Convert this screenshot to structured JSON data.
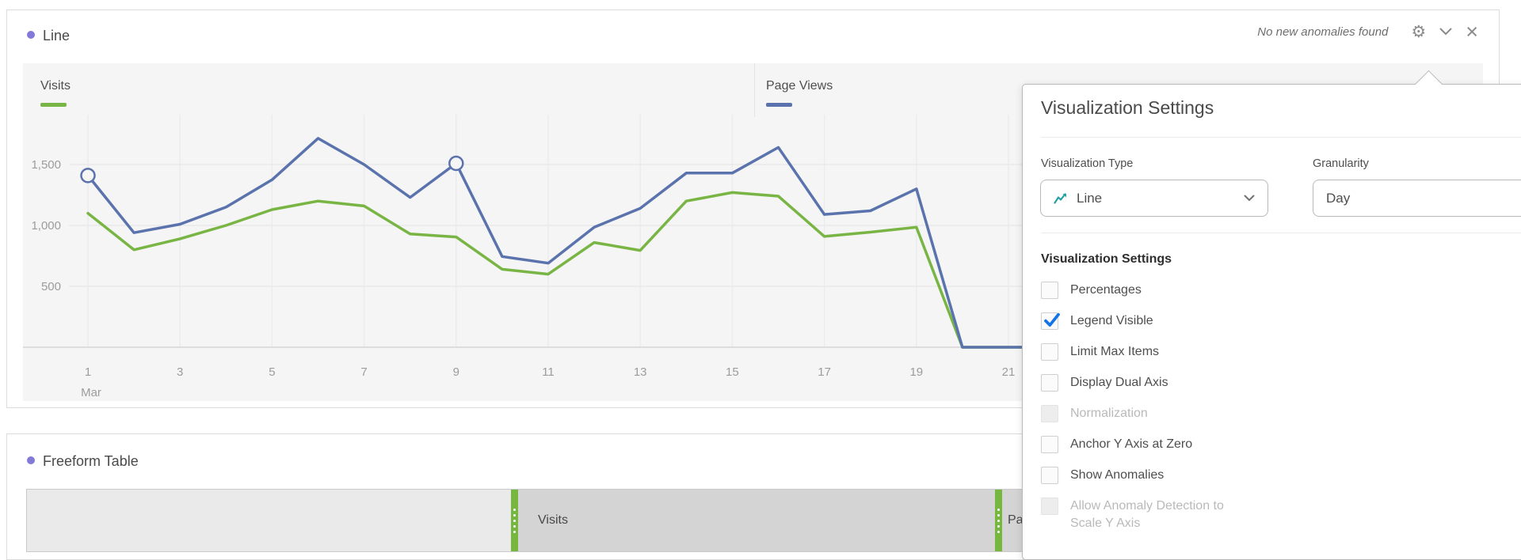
{
  "accent_dot_color": "#8379d8",
  "line_panel": {
    "title": "Line",
    "status": "No new anomalies found"
  },
  "chart_data": {
    "type": "line",
    "x": [
      1,
      2,
      3,
      4,
      5,
      6,
      7,
      8,
      9,
      10,
      11,
      12,
      13,
      14,
      15,
      16,
      17,
      18,
      19,
      20,
      21,
      22
    ],
    "x_axis": {
      "ticks": [
        1,
        3,
        5,
        7,
        9,
        11,
        13,
        15,
        17,
        19,
        21
      ],
      "month_label": "Mar",
      "month_label_at": 1
    },
    "y_axis": {
      "ticks": [
        500,
        1000,
        1500
      ],
      "tick_labels": [
        "500",
        "1,000",
        "1,500"
      ],
      "ylim": [
        0,
        2000
      ]
    },
    "series": [
      {
        "name": "Visits",
        "color": "#79b544",
        "values": [
          1100,
          800,
          890,
          1000,
          1130,
          1200,
          1160,
          930,
          905,
          640,
          600,
          860,
          795,
          1200,
          1270,
          1240,
          910,
          945,
          985,
          0,
          0,
          0
        ]
      },
      {
        "name": "Page Views",
        "color": "#5b73ad",
        "values": [
          1410,
          940,
          1010,
          1150,
          1375,
          1715,
          1500,
          1230,
          1510,
          745,
          690,
          985,
          1140,
          1430,
          1430,
          1640,
          1090,
          1120,
          1300,
          0,
          0,
          0
        ],
        "anomaly_markers_at_x": [
          1,
          9
        ]
      }
    ],
    "grid": true,
    "legend_position": "top",
    "background": "#f5f5f5"
  },
  "settings_popover": {
    "title": "Visualization Settings",
    "visualization_type": {
      "label": "Visualization Type",
      "value": "Line",
      "icon": "line-chart-icon",
      "icon_color": "#26a0a5"
    },
    "granularity": {
      "label": "Granularity",
      "value": "Day"
    },
    "section_title": "Visualization Settings",
    "checkbox_checked_color": "#1473e6",
    "checkboxes": [
      {
        "label": "Percentages",
        "checked": false,
        "disabled": false
      },
      {
        "label": "Legend Visible",
        "checked": true,
        "disabled": false
      },
      {
        "label": "Limit Max Items",
        "checked": false,
        "disabled": false
      },
      {
        "label": "Display Dual Axis",
        "checked": false,
        "disabled": false
      },
      {
        "label": "Normalization",
        "checked": false,
        "disabled": true
      },
      {
        "label": "Anchor Y Axis at Zero",
        "checked": false,
        "disabled": false
      },
      {
        "label": "Show Anomalies",
        "checked": false,
        "disabled": false
      },
      {
        "label": "Allow Anomaly Detection to Scale Y Axis",
        "checked": false,
        "disabled": true
      }
    ]
  },
  "freeform_panel": {
    "title": "Freeform Table",
    "header_columns": [
      {
        "label": ""
      },
      {
        "label": "Visits"
      },
      {
        "label": "Page Views"
      }
    ]
  }
}
